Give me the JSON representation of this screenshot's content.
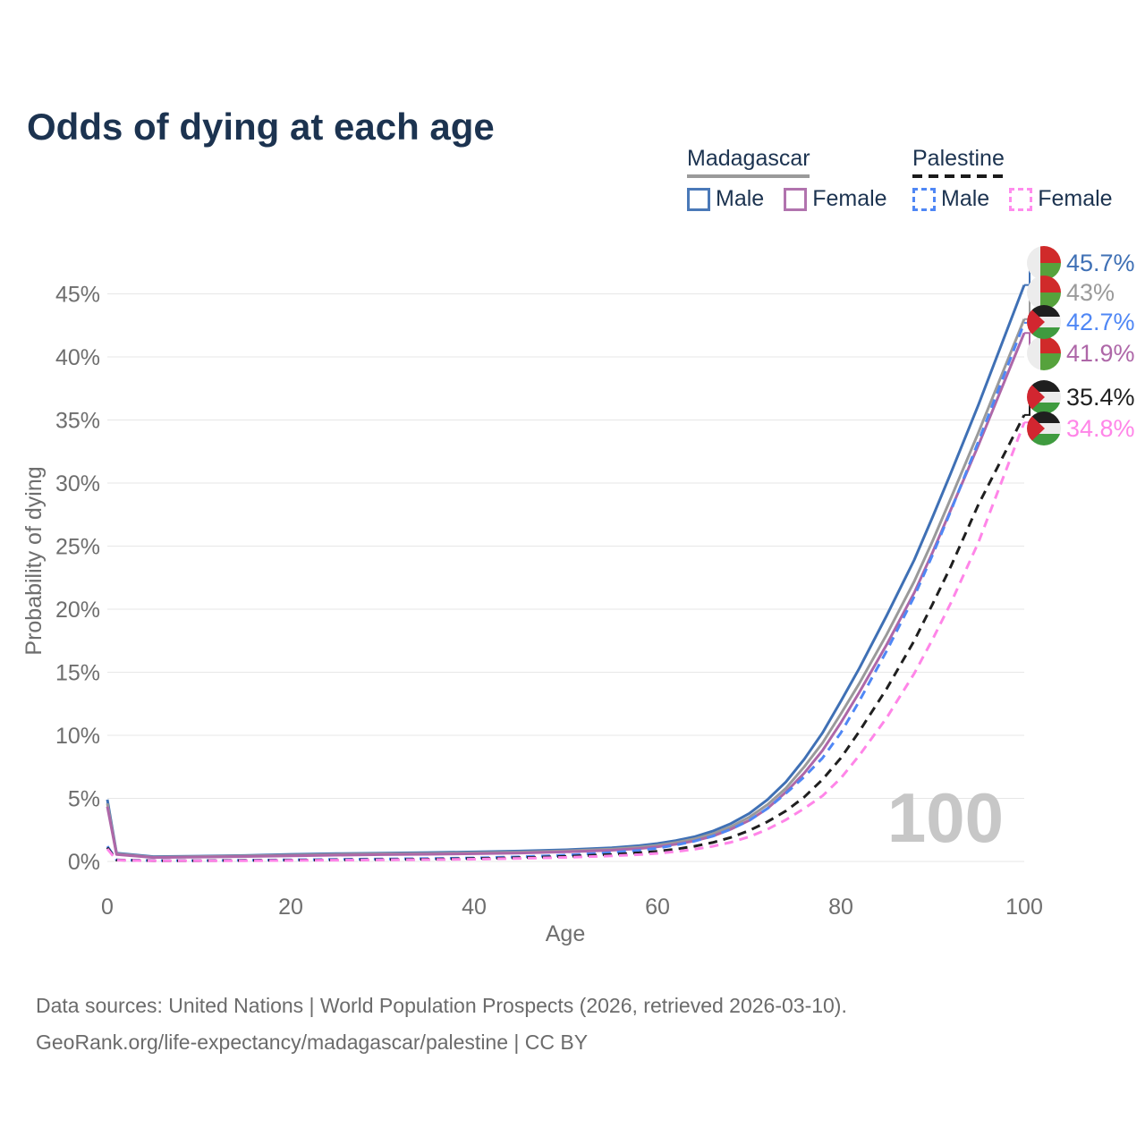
{
  "title": "Odds of dying at each age",
  "legend": {
    "groups": [
      {
        "country": "Madagascar",
        "line_color": "#9a9a9a",
        "line_style": "solid",
        "items": [
          {
            "label": "Male",
            "color": "#4a79b8",
            "style": "solid"
          },
          {
            "label": "Female",
            "color": "#b173ae",
            "style": "solid"
          }
        ]
      },
      {
        "country": "Palestine",
        "line_color": "#1a1a1a",
        "line_style": "dashed",
        "items": [
          {
            "label": "Male",
            "color": "#4f87f5",
            "style": "dashed"
          },
          {
            "label": "Female",
            "color": "#ff8ced",
            "style": "dashed"
          }
        ]
      }
    ]
  },
  "flags": {
    "madagascar": {
      "white": "#ececec",
      "red": "#d02a2a",
      "green": "#56a23c"
    },
    "palestine": {
      "black": "#1f1f1f",
      "white": "#ececec",
      "green": "#3f9b3f",
      "red": "#d22630"
    }
  },
  "chart_data": {
    "type": "line",
    "title": "Odds of dying at each age",
    "xlabel": "Age",
    "ylabel": "Probability of dying",
    "xlim": [
      0,
      100
    ],
    "ylim": [
      0,
      47
    ],
    "grid": "horizontal",
    "legend_position": "top-right",
    "watermark": "100",
    "x_ticks": [
      {
        "v": 0,
        "label": "0"
      },
      {
        "v": 20,
        "label": "20"
      },
      {
        "v": 40,
        "label": "40"
      },
      {
        "v": 60,
        "label": "60"
      },
      {
        "v": 80,
        "label": "80"
      },
      {
        "v": 100,
        "label": "100"
      }
    ],
    "y_ticks": [
      {
        "v": 0,
        "label": "0%"
      },
      {
        "v": 5,
        "label": "5%"
      },
      {
        "v": 10,
        "label": "10%"
      },
      {
        "v": 15,
        "label": "15%"
      },
      {
        "v": 20,
        "label": "20%"
      },
      {
        "v": 25,
        "label": "25%"
      },
      {
        "v": 30,
        "label": "30%"
      },
      {
        "v": 35,
        "label": "35%"
      },
      {
        "v": 40,
        "label": "40%"
      },
      {
        "v": 45,
        "label": "45%"
      }
    ],
    "series": [
      {
        "id": "madagascar-male",
        "name": "Madagascar Male",
        "country": "Madagascar",
        "sex": "Male",
        "style": "solid",
        "color": "#3f70b5",
        "end_label": "45.7%",
        "label_color": "#3f70b5",
        "values": [
          [
            0,
            4.9
          ],
          [
            1,
            0.65
          ],
          [
            5,
            0.38
          ],
          [
            10,
            0.42
          ],
          [
            15,
            0.47
          ],
          [
            20,
            0.56
          ],
          [
            25,
            0.62
          ],
          [
            30,
            0.66
          ],
          [
            35,
            0.7
          ],
          [
            40,
            0.75
          ],
          [
            45,
            0.82
          ],
          [
            50,
            0.92
          ],
          [
            55,
            1.08
          ],
          [
            58,
            1.25
          ],
          [
            60,
            1.42
          ],
          [
            62,
            1.65
          ],
          [
            64,
            1.95
          ],
          [
            66,
            2.4
          ],
          [
            68,
            3.0
          ],
          [
            70,
            3.8
          ],
          [
            72,
            4.9
          ],
          [
            74,
            6.3
          ],
          [
            76,
            8.1
          ],
          [
            78,
            10.2
          ],
          [
            80,
            12.7
          ],
          [
            82,
            15.3
          ],
          [
            85,
            19.5
          ],
          [
            88,
            23.9
          ],
          [
            90,
            27.3
          ],
          [
            92,
            30.8
          ],
          [
            95,
            36.2
          ],
          [
            100,
            45.7
          ]
        ]
      },
      {
        "id": "madagascar-combined",
        "name": "Madagascar Both sexes",
        "country": "Madagascar",
        "sex": "Both",
        "style": "solid",
        "color": "#9a9a9a",
        "end_label": "43%",
        "label_color": "#9a9a9a",
        "values": [
          [
            0,
            4.6
          ],
          [
            1,
            0.6
          ],
          [
            5,
            0.34
          ],
          [
            10,
            0.38
          ],
          [
            15,
            0.43
          ],
          [
            20,
            0.5
          ],
          [
            25,
            0.56
          ],
          [
            30,
            0.6
          ],
          [
            35,
            0.63
          ],
          [
            40,
            0.68
          ],
          [
            45,
            0.74
          ],
          [
            50,
            0.84
          ],
          [
            55,
            0.98
          ],
          [
            58,
            1.13
          ],
          [
            60,
            1.28
          ],
          [
            62,
            1.5
          ],
          [
            64,
            1.78
          ],
          [
            66,
            2.18
          ],
          [
            68,
            2.75
          ],
          [
            70,
            3.5
          ],
          [
            72,
            4.5
          ],
          [
            74,
            5.8
          ],
          [
            76,
            7.5
          ],
          [
            78,
            9.4
          ],
          [
            80,
            11.7
          ],
          [
            82,
            14.1
          ],
          [
            85,
            18.0
          ],
          [
            88,
            22.2
          ],
          [
            90,
            25.4
          ],
          [
            92,
            28.8
          ],
          [
            95,
            34.0
          ],
          [
            100,
            43.0
          ]
        ]
      },
      {
        "id": "madagascar-female",
        "name": "Madagascar Female",
        "country": "Madagascar",
        "sex": "Female",
        "style": "solid",
        "color": "#ae67a8",
        "end_label": "41.9%",
        "label_color": "#ae67a8",
        "values": [
          [
            0,
            4.35
          ],
          [
            1,
            0.55
          ],
          [
            5,
            0.31
          ],
          [
            10,
            0.35
          ],
          [
            15,
            0.39
          ],
          [
            20,
            0.45
          ],
          [
            25,
            0.5
          ],
          [
            30,
            0.54
          ],
          [
            35,
            0.57
          ],
          [
            40,
            0.61
          ],
          [
            45,
            0.67
          ],
          [
            50,
            0.76
          ],
          [
            55,
            0.89
          ],
          [
            58,
            1.02
          ],
          [
            60,
            1.16
          ],
          [
            62,
            1.36
          ],
          [
            64,
            1.62
          ],
          [
            66,
            2.0
          ],
          [
            68,
            2.55
          ],
          [
            70,
            3.25
          ],
          [
            72,
            4.2
          ],
          [
            74,
            5.5
          ],
          [
            76,
            7.0
          ],
          [
            78,
            8.8
          ],
          [
            80,
            11.0
          ],
          [
            82,
            13.4
          ],
          [
            85,
            17.2
          ],
          [
            88,
            21.3
          ],
          [
            90,
            24.5
          ],
          [
            92,
            27.9
          ],
          [
            95,
            33.0
          ],
          [
            100,
            41.9
          ]
        ]
      },
      {
        "id": "palestine-male",
        "name": "Palestine Male",
        "country": "Palestine",
        "sex": "Male",
        "style": "dashed",
        "color": "#4f87f5",
        "end_label": "42.7%",
        "label_color": "#4f87f5",
        "values": [
          [
            0,
            1.2
          ],
          [
            1,
            0.12
          ],
          [
            5,
            0.07
          ],
          [
            10,
            0.07
          ],
          [
            15,
            0.09
          ],
          [
            20,
            0.13
          ],
          [
            25,
            0.16
          ],
          [
            30,
            0.19
          ],
          [
            35,
            0.23
          ],
          [
            40,
            0.28
          ],
          [
            45,
            0.36
          ],
          [
            50,
            0.5
          ],
          [
            55,
            0.7
          ],
          [
            58,
            0.88
          ],
          [
            60,
            1.05
          ],
          [
            62,
            1.3
          ],
          [
            64,
            1.6
          ],
          [
            66,
            2.0
          ],
          [
            68,
            2.55
          ],
          [
            70,
            3.25
          ],
          [
            72,
            4.2
          ],
          [
            74,
            5.4
          ],
          [
            76,
            6.7
          ],
          [
            78,
            8.2
          ],
          [
            80,
            10.2
          ],
          [
            82,
            12.7
          ],
          [
            85,
            16.7
          ],
          [
            88,
            21.0
          ],
          [
            90,
            24.3
          ],
          [
            92,
            27.8
          ],
          [
            95,
            33.3
          ],
          [
            100,
            42.7
          ]
        ]
      },
      {
        "id": "palestine-combined",
        "name": "Palestine Both sexes",
        "country": "Palestine",
        "sex": "Both",
        "style": "dashed",
        "color": "#1f1f1f",
        "end_label": "35.4%",
        "label_color": "#1f1f1f",
        "values": [
          [
            0,
            1.1
          ],
          [
            1,
            0.11
          ],
          [
            5,
            0.06
          ],
          [
            10,
            0.06
          ],
          [
            15,
            0.08
          ],
          [
            20,
            0.1
          ],
          [
            25,
            0.12
          ],
          [
            30,
            0.15
          ],
          [
            35,
            0.18
          ],
          [
            40,
            0.23
          ],
          [
            45,
            0.3
          ],
          [
            50,
            0.4
          ],
          [
            55,
            0.55
          ],
          [
            58,
            0.68
          ],
          [
            60,
            0.8
          ],
          [
            62,
            0.97
          ],
          [
            64,
            1.2
          ],
          [
            66,
            1.5
          ],
          [
            68,
            1.9
          ],
          [
            70,
            2.45
          ],
          [
            72,
            3.15
          ],
          [
            74,
            4.0
          ],
          [
            76,
            5.1
          ],
          [
            78,
            6.5
          ],
          [
            80,
            8.2
          ],
          [
            82,
            10.3
          ],
          [
            85,
            13.7
          ],
          [
            88,
            17.5
          ],
          [
            90,
            20.4
          ],
          [
            92,
            23.4
          ],
          [
            95,
            28.3
          ],
          [
            100,
            35.4
          ]
        ]
      },
      {
        "id": "palestine-female",
        "name": "Palestine Female",
        "country": "Palestine",
        "sex": "Female",
        "style": "dashed",
        "color": "#ff85e8",
        "end_label": "34.8%",
        "label_color": "#ff85e8",
        "values": [
          [
            0,
            1.0
          ],
          [
            1,
            0.1
          ],
          [
            5,
            0.05
          ],
          [
            10,
            0.05
          ],
          [
            15,
            0.06
          ],
          [
            20,
            0.08
          ],
          [
            25,
            0.1
          ],
          [
            30,
            0.12
          ],
          [
            35,
            0.14
          ],
          [
            40,
            0.18
          ],
          [
            45,
            0.24
          ],
          [
            50,
            0.32
          ],
          [
            55,
            0.44
          ],
          [
            58,
            0.54
          ],
          [
            60,
            0.64
          ],
          [
            62,
            0.78
          ],
          [
            64,
            0.96
          ],
          [
            66,
            1.2
          ],
          [
            68,
            1.52
          ],
          [
            70,
            1.95
          ],
          [
            72,
            2.55
          ],
          [
            74,
            3.3
          ],
          [
            76,
            4.2
          ],
          [
            78,
            5.2
          ],
          [
            80,
            6.6
          ],
          [
            82,
            8.4
          ],
          [
            85,
            11.4
          ],
          [
            88,
            14.9
          ],
          [
            90,
            17.6
          ],
          [
            92,
            20.5
          ],
          [
            95,
            25.3
          ],
          [
            100,
            34.8
          ]
        ]
      }
    ]
  },
  "footer": {
    "line1": "Data sources: United Nations | World Population Prospects (2026, retrieved 2026-03-10).",
    "line2": "GeoRank.org/life-expectancy/madagascar/palestine | CC BY"
  }
}
